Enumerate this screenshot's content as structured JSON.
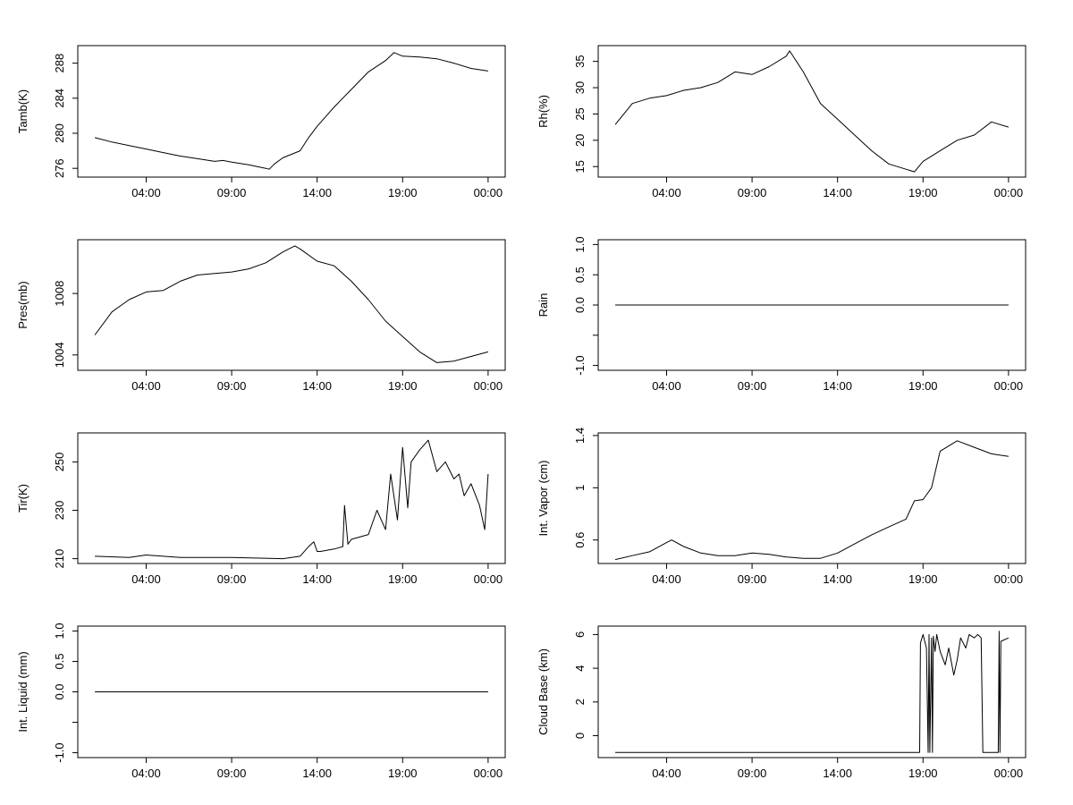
{
  "colors": {
    "line": "#000000",
    "frame": "#000000",
    "background": "#ffffff"
  },
  "x_ticks": [
    "04:00",
    "09:00",
    "14:00",
    "19:00",
    "00:00"
  ],
  "chart_data": [
    {
      "type": "line",
      "ylabel": "Tamb(K)",
      "yticks": [
        276,
        280,
        284,
        288
      ],
      "ylim": [
        275,
        290
      ],
      "x": [
        1,
        2,
        3,
        4,
        5,
        6,
        7,
        8,
        8.5,
        9,
        10,
        11,
        11.2,
        11.5,
        12,
        13,
        13.5,
        14,
        15,
        16,
        17,
        18,
        18.5,
        19,
        20,
        21,
        22,
        23,
        24
      ],
      "y": [
        279.5,
        279.0,
        278.6,
        278.2,
        277.8,
        277.4,
        277.1,
        276.8,
        276.9,
        276.7,
        276.4,
        276.0,
        275.9,
        276.5,
        277.2,
        278.0,
        279.5,
        280.8,
        283.0,
        285.0,
        287.0,
        288.3,
        289.2,
        288.8,
        288.7,
        288.5,
        288.0,
        287.4,
        287.1
      ]
    },
    {
      "type": "line",
      "ylabel": "Rh(%)",
      "yticks": [
        15,
        20,
        25,
        30,
        35
      ],
      "ylim": [
        13,
        38
      ],
      "x": [
        1,
        2,
        3,
        4,
        5,
        6,
        7,
        8,
        9,
        10,
        11,
        11.2,
        12,
        13,
        14,
        15,
        16,
        17,
        18,
        18.5,
        19,
        20,
        21,
        22,
        23,
        24
      ],
      "y": [
        23,
        27,
        28,
        28.5,
        29.5,
        30,
        31,
        33,
        32.5,
        34,
        36,
        37,
        33,
        27,
        24,
        21,
        18,
        15.5,
        14.5,
        14,
        16,
        18,
        20,
        21,
        23.5,
        22.5
      ]
    },
    {
      "type": "line",
      "ylabel": "Pres(mb)",
      "yticks": [
        1004,
        1008
      ],
      "ylim": [
        1003,
        1011.5
      ],
      "x": [
        1,
        2,
        3,
        4,
        5,
        6,
        7,
        8,
        9,
        10,
        11,
        12,
        12.7,
        13,
        14,
        15,
        16,
        17,
        18,
        19,
        20,
        21,
        22,
        23,
        24
      ],
      "y": [
        1005.3,
        1006.8,
        1007.6,
        1008.1,
        1008.2,
        1008.8,
        1009.2,
        1009.3,
        1009.4,
        1009.6,
        1010.0,
        1010.7,
        1011.1,
        1010.9,
        1010.1,
        1009.8,
        1008.8,
        1007.6,
        1006.2,
        1005.2,
        1004.2,
        1003.5,
        1003.6,
        1003.9,
        1004.2
      ]
    },
    {
      "type": "line",
      "ylabel": "Rain",
      "yticks": [
        -1.0,
        -0.5,
        0.0,
        0.5,
        1.0
      ],
      "ytick_labels": [
        "-1.0",
        "",
        "0.0",
        "0.5",
        "1.0"
      ],
      "ylim": [
        -1.08,
        1.08
      ],
      "x": [
        1,
        24
      ],
      "y": [
        0,
        0
      ]
    },
    {
      "type": "line",
      "ylabel": "Tir(K)",
      "yticks": [
        210,
        230,
        250
      ],
      "ylim": [
        208,
        262
      ],
      "x": [
        1,
        3,
        4,
        6,
        9,
        12,
        13,
        13.5,
        13.8,
        14,
        14.2,
        15,
        15.5,
        15.6,
        15.8,
        16,
        17,
        17.5,
        18,
        18.3,
        18.7,
        19,
        19.3,
        19.5,
        20,
        20.5,
        21,
        21.5,
        22,
        22.3,
        22.6,
        23,
        23.5,
        23.8,
        24
      ],
      "y": [
        211,
        210.5,
        211.5,
        210.5,
        210.5,
        210,
        211,
        215,
        217,
        213,
        213,
        214,
        215,
        232,
        216,
        218,
        220,
        230,
        222,
        245,
        226,
        256,
        231,
        250,
        255,
        259,
        246,
        250,
        243,
        245,
        236,
        241,
        232,
        222,
        245
      ]
    },
    {
      "type": "line",
      "ylabel": "Int. Vapor (cm)",
      "yticks": [
        0.6,
        1.0,
        1.4
      ],
      "ylim": [
        0.42,
        1.42
      ],
      "x": [
        1,
        2,
        3,
        4,
        4.3,
        5,
        6,
        7,
        8,
        9,
        10,
        11,
        12,
        13,
        14,
        15,
        16,
        17,
        18,
        18.5,
        19,
        19.5,
        20,
        21,
        22,
        23,
        24
      ],
      "y": [
        0.45,
        0.48,
        0.51,
        0.58,
        0.6,
        0.55,
        0.5,
        0.48,
        0.48,
        0.5,
        0.49,
        0.47,
        0.46,
        0.46,
        0.5,
        0.57,
        0.64,
        0.7,
        0.76,
        0.9,
        0.91,
        1.0,
        1.28,
        1.36,
        1.31,
        1.26,
        1.24
      ]
    },
    {
      "type": "line",
      "ylabel": "Int. Liquid (mm)",
      "yticks": [
        -1.0,
        -0.5,
        0.0,
        0.5,
        1.0
      ],
      "ytick_labels": [
        "-1.0",
        "",
        "0.0",
        "0.5",
        "1.0"
      ],
      "ylim": [
        -1.08,
        1.08
      ],
      "x": [
        1,
        24
      ],
      "y": [
        0,
        0
      ]
    },
    {
      "type": "line",
      "ylabel": "Cloud Base (km)",
      "yticks": [
        0,
        2,
        4,
        6
      ],
      "ylim": [
        -1.3,
        6.5
      ],
      "x": [
        1,
        18.8,
        18.85,
        19,
        19.2,
        19.3,
        19.35,
        19.4,
        19.5,
        19.55,
        19.6,
        19.7,
        19.8,
        20,
        20.3,
        20.5,
        20.8,
        21,
        21.2,
        21.5,
        21.7,
        22,
        22.2,
        22.4,
        22.5,
        22.55,
        23,
        23.4,
        23.45,
        23.5,
        23.55,
        24
      ],
      "y": [
        -1,
        -1,
        5.5,
        6,
        5.2,
        -1,
        6,
        -1,
        5.8,
        -1,
        5.9,
        5,
        6,
        5,
        4.2,
        5.2,
        3.6,
        4.5,
        5.8,
        5.2,
        6,
        5.8,
        6,
        5.8,
        -1,
        -1,
        -1,
        -1,
        6.2,
        -1,
        5.6,
        5.8
      ]
    }
  ]
}
